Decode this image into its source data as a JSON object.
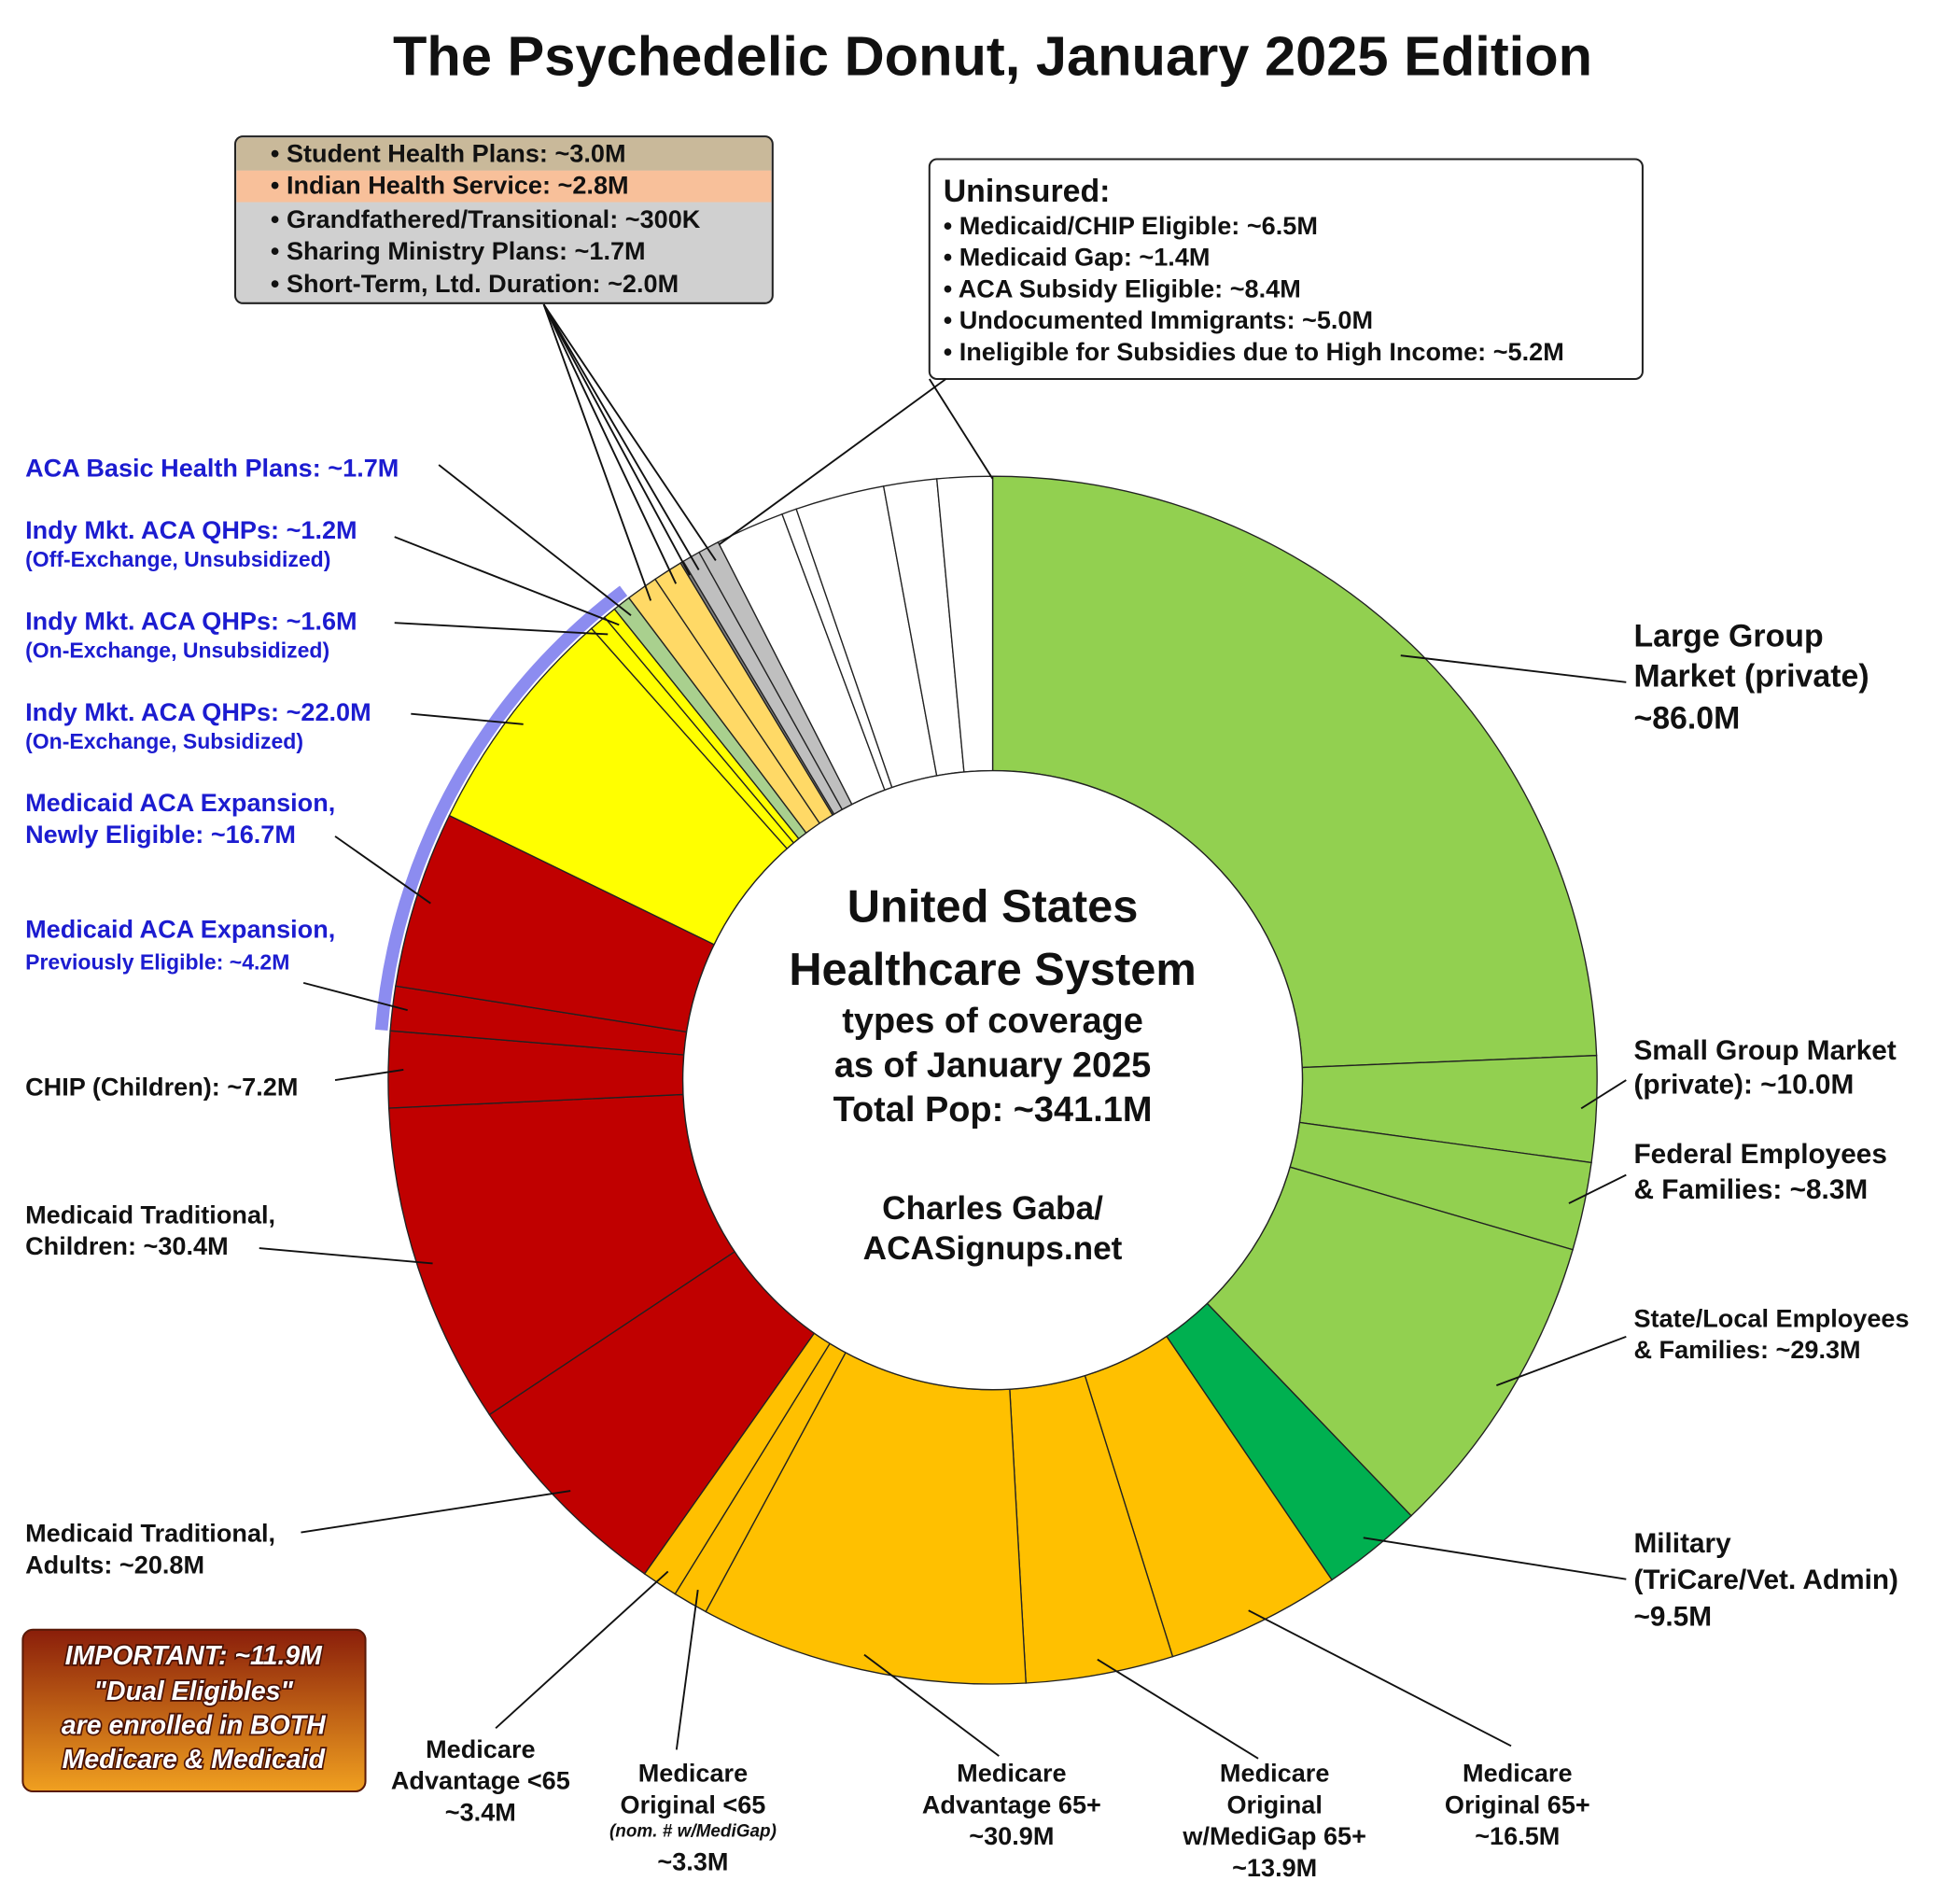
{
  "chart_data": {
    "type": "pie",
    "title": "The Psychedelic Donut, January 2025 Edition",
    "center_text": [
      "United States",
      "Healthcare System",
      "types of coverage",
      "as of January 2025",
      "Total Pop: ~341.1M",
      "Charles Gaba/",
      "ACASignups.net"
    ],
    "note": [
      "IMPORTANT: ~11.9M",
      "\"Dual Eligibles\"",
      "are enrolled in BOTH",
      "Medicare & Medicaid"
    ],
    "uninsured_title": "Uninsured:",
    "slices": [
      {
        "label": [
          "Large Group",
          "Market (private)",
          "~86.0M"
        ],
        "value": 86.0,
        "color": "#92d050"
      },
      {
        "label": [
          "Small Group Market",
          "(private): ~10.0M"
        ],
        "value": 10.0,
        "color": "#92d050"
      },
      {
        "label": [
          "Federal Employees",
          "& Families: ~8.3M"
        ],
        "value": 8.3,
        "color": "#92d050"
      },
      {
        "label": [
          "State/Local Employees",
          "& Families: ~29.3M"
        ],
        "value": 29.3,
        "color": "#92d050"
      },
      {
        "label": [
          "Military",
          "(TriCare/Vet. Admin)",
          "~9.5M"
        ],
        "value": 9.5,
        "color": "#00b050"
      },
      {
        "label": [
          "Medicare",
          "Original 65+",
          "~16.5M"
        ],
        "value": 16.5,
        "color": "#ffc000"
      },
      {
        "label": [
          "Medicare",
          "Original",
          "w/MediGap 65+",
          "~13.9M"
        ],
        "value": 13.9,
        "color": "#ffc000"
      },
      {
        "label": [
          "Medicare",
          "Advantage 65+",
          "~30.9M"
        ],
        "value": 30.9,
        "color": "#ffc000"
      },
      {
        "label": [
          "Medicare",
          "Original <65",
          "(nom. # w/MediGap)",
          "~3.3M"
        ],
        "value": 3.3,
        "color": "#ffc000"
      },
      {
        "label": [
          "Medicare",
          "Advantage <65",
          "~3.4M"
        ],
        "value": 3.4,
        "color": "#ffc000"
      },
      {
        "label": [
          "Medicaid Traditional,",
          "Adults: ~20.8M"
        ],
        "value": 20.8,
        "color": "#c00000"
      },
      {
        "label": [
          "Medicaid Traditional,",
          "Children: ~30.4M"
        ],
        "value": 30.4,
        "color": "#c00000"
      },
      {
        "label": [
          "CHIP (Children): ~7.2M"
        ],
        "value": 7.2,
        "color": "#c00000"
      },
      {
        "label": [
          "Medicaid ACA Expansion,",
          "Previously Eligible: ~4.2M"
        ],
        "value": 4.2,
        "color": "#c00000",
        "label_color": "#1c1cd0"
      },
      {
        "label": [
          "Medicaid ACA Expansion,",
          "Newly Eligible: ~16.7M"
        ],
        "value": 16.7,
        "color": "#c00000",
        "label_color": "#1c1cd0"
      },
      {
        "label": [
          "Indy Mkt. ACA QHPs: ~22.0M",
          "(On-Exchange, Subsidized)"
        ],
        "value": 22.0,
        "color": "#ffff00",
        "label_color": "#1c1cd0"
      },
      {
        "label": [
          "Indy Mkt. ACA QHPs: ~1.6M",
          "(On-Exchange, Unsubsidized)"
        ],
        "value": 1.6,
        "color": "#ffff00",
        "label_color": "#1c1cd0"
      },
      {
        "label": [
          "Indy Mkt. ACA QHPs: ~1.2M",
          "(Off-Exchange, Unsubsidized)"
        ],
        "value": 1.2,
        "color": "#ffff00",
        "label_color": "#1c1cd0"
      },
      {
        "label": [
          "ACA Basic Health Plans: ~1.7M"
        ],
        "value": 1.7,
        "color": "#a9d08e",
        "label_color": "#1c1cd0"
      },
      {
        "label": [
          "• Student Health Plans: ~3.0M"
        ],
        "value": 3.0,
        "color": "#ffd966",
        "box": "left"
      },
      {
        "label": [
          "• Indian Health Service: ~2.8M"
        ],
        "value": 2.8,
        "color": "#ffd966",
        "box": "left"
      },
      {
        "label": [
          "• Grandfathered/Transitional: ~300K"
        ],
        "value": 0.3,
        "color": "#7f7f7f",
        "box": "left"
      },
      {
        "label": [
          "• Sharing Ministry Plans: ~1.7M"
        ],
        "value": 1.7,
        "color": "#bfbfbf",
        "box": "left"
      },
      {
        "label": [
          "• Short-Term, Ltd. Duration: ~2.0M"
        ],
        "value": 2.0,
        "color": "#bfbfbf",
        "box": "left"
      },
      {
        "label": [
          "• Medicaid/CHIP Eligible: ~6.5M"
        ],
        "value": 6.5,
        "color": "#ffffff",
        "box": "uninsured"
      },
      {
        "label": [
          "• Medicaid Gap: ~1.4M"
        ],
        "value": 1.4,
        "color": "#ffffff",
        "box": "uninsured"
      },
      {
        "label": [
          "• ACA Subsidy Eligible: ~8.4M"
        ],
        "value": 8.4,
        "color": "#ffffff",
        "box": "uninsured"
      },
      {
        "label": [
          "• Undocumented Immigrants: ~5.0M"
        ],
        "value": 5.0,
        "color": "#ffffff",
        "box": "uninsured"
      },
      {
        "label": [
          "• Ineligible for Subsidies due to High Income: ~5.2M"
        ],
        "value": 5.2,
        "color": "#ffffff",
        "box": "uninsured"
      }
    ]
  }
}
